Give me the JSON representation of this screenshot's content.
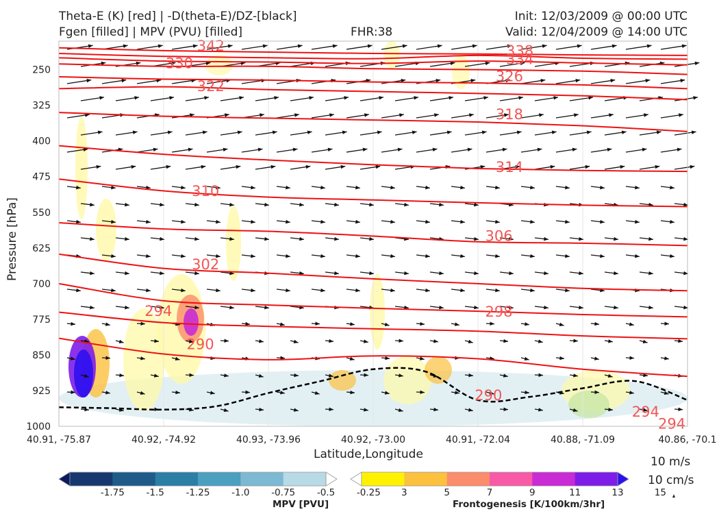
{
  "header": {
    "left_line1": "Theta-E (K) [red] | -D(theta-E)/DZ-[black]",
    "left_line2": "Fgen [filled] | MPV (PVU) [filled]",
    "center": "FHR:38",
    "right_line1": "Init: 12/03/2009 @ 00:00 UTC",
    "right_line2": "Valid: 12/04/2009 @ 14:00 UTC"
  },
  "chart_data": {
    "type": "cross-section",
    "xlabel": "Latitude,Longitude",
    "ylabel": "Pressure [hPa]",
    "x_ticks": [
      "40.91, -75.87",
      "40.92, -74.92",
      "40.93, -73.96",
      "40.92, -73.00",
      "40.91, -72.04",
      "40.88, -71.09",
      "40.86, -70.1"
    ],
    "y_ticks": [
      250,
      325,
      400,
      475,
      550,
      625,
      700,
      775,
      850,
      925,
      1000
    ],
    "ylim": [
      1000,
      190
    ],
    "theta_e_contours": [
      {
        "label": "342",
        "values": [
          [
            0,
            204
          ],
          [
            1,
            210
          ],
          [
            2,
            213
          ],
          [
            3,
            216
          ],
          [
            4,
            217
          ],
          [
            5,
            219
          ],
          [
            6,
            220
          ]
        ]
      },
      {
        "label": "338",
        "values": [
          [
            0,
            216
          ],
          [
            1,
            222
          ],
          [
            2,
            225
          ],
          [
            3,
            227
          ],
          [
            4,
            220
          ],
          [
            5,
            226
          ],
          [
            6,
            228
          ]
        ]
      },
      {
        "label": "334",
        "values": [
          [
            0,
            225
          ],
          [
            1,
            232
          ],
          [
            2,
            234
          ],
          [
            3,
            237
          ],
          [
            4,
            232
          ],
          [
            5,
            236
          ],
          [
            6,
            240
          ]
        ]
      },
      {
        "label": "330",
        "values": [
          [
            0,
            238
          ],
          [
            1,
            243
          ],
          [
            2,
            243
          ],
          [
            3,
            248
          ],
          [
            4,
            250
          ],
          [
            5,
            253
          ],
          [
            6,
            260
          ]
        ]
      },
      {
        "label": "326",
        "values": [
          [
            0,
            265
          ],
          [
            1,
            270
          ],
          [
            2,
            272
          ],
          [
            3,
            276
          ],
          [
            4,
            278
          ],
          [
            5,
            282
          ],
          [
            6,
            290
          ]
        ]
      },
      {
        "label": "322",
        "values": [
          [
            0,
            290
          ],
          [
            1,
            286
          ],
          [
            2,
            292
          ],
          [
            3,
            296
          ],
          [
            4,
            300
          ],
          [
            5,
            305
          ],
          [
            6,
            313
          ]
        ]
      },
      {
        "label": "318",
        "values": [
          [
            0,
            340
          ],
          [
            1,
            348
          ],
          [
            2,
            352
          ],
          [
            3,
            356
          ],
          [
            4,
            360
          ],
          [
            5,
            368
          ],
          [
            6,
            380
          ]
        ]
      },
      {
        "label": "314",
        "values": [
          [
            0,
            410
          ],
          [
            1,
            428
          ],
          [
            2,
            440
          ],
          [
            3,
            450
          ],
          [
            4,
            458
          ],
          [
            5,
            462
          ],
          [
            6,
            464
          ]
        ]
      },
      {
        "label": "310",
        "values": [
          [
            0,
            480
          ],
          [
            1,
            505
          ],
          [
            2,
            518
          ],
          [
            3,
            524
          ],
          [
            4,
            530
          ],
          [
            5,
            535
          ],
          [
            6,
            538
          ]
        ]
      },
      {
        "label": "306",
        "values": [
          [
            0,
            572
          ],
          [
            1,
            585
          ],
          [
            2,
            590
          ],
          [
            3,
            600
          ],
          [
            4,
            612
          ],
          [
            5,
            615
          ],
          [
            6,
            620
          ]
        ]
      },
      {
        "label": "302",
        "values": [
          [
            0,
            638
          ],
          [
            1,
            668
          ],
          [
            2,
            678
          ],
          [
            3,
            690
          ],
          [
            4,
            700
          ],
          [
            5,
            710
          ],
          [
            6,
            715
          ]
        ]
      },
      {
        "label": "298",
        "values": [
          [
            0,
            700
          ],
          [
            1,
            736
          ],
          [
            2,
            745
          ],
          [
            3,
            752
          ],
          [
            4,
            758
          ],
          [
            5,
            765
          ],
          [
            6,
            770
          ]
        ]
      },
      {
        "label": "294",
        "values": [
          [
            0,
            760
          ],
          [
            1,
            782
          ],
          [
            2,
            790
          ],
          [
            3,
            795
          ],
          [
            4,
            800
          ],
          [
            5,
            810
          ],
          [
            6,
            816
          ]
        ]
      },
      {
        "label": "290",
        "values": [
          [
            0,
            815
          ],
          [
            1,
            848
          ],
          [
            2,
            860
          ],
          [
            3,
            852
          ],
          [
            4,
            858
          ],
          [
            5,
            880
          ],
          [
            6,
            895
          ]
        ]
      }
    ],
    "theta_e_labels": [
      {
        "text": "342",
        "x": 1.45,
        "y": 200
      },
      {
        "text": "338",
        "x": 4.4,
        "y": 211
      },
      {
        "text": "334",
        "x": 4.4,
        "y": 228
      },
      {
        "text": "330",
        "x": 1.15,
        "y": 237
      },
      {
        "text": "326",
        "x": 4.3,
        "y": 264
      },
      {
        "text": "322",
        "x": 1.45,
        "y": 285
      },
      {
        "text": "318",
        "x": 4.3,
        "y": 344
      },
      {
        "text": "314",
        "x": 4.3,
        "y": 455
      },
      {
        "text": "310",
        "x": 1.4,
        "y": 506
      },
      {
        "text": "306",
        "x": 4.2,
        "y": 600
      },
      {
        "text": "302",
        "x": 1.4,
        "y": 660
      },
      {
        "text": "298",
        "x": 4.2,
        "y": 759
      },
      {
        "text": "294",
        "x": 0.95,
        "y": 758
      },
      {
        "text": "290",
        "x": 1.35,
        "y": 828
      },
      {
        "text": "290",
        "x": 4.1,
        "y": 935
      },
      {
        "text": "294",
        "x": 5.6,
        "y": 970
      },
      {
        "text": "294",
        "x": 5.85,
        "y": 995
      }
    ],
    "stability_contour_black_dashed": [
      [
        0,
        960
      ],
      [
        0.5,
        962
      ],
      [
        1,
        965
      ],
      [
        1.5,
        958
      ],
      [
        2,
        930
      ],
      [
        2.5,
        905
      ],
      [
        3,
        880
      ],
      [
        3.5,
        885
      ],
      [
        4,
        945
      ],
      [
        4.5,
        938
      ],
      [
        5,
        920
      ],
      [
        5.5,
        905
      ],
      [
        6,
        945
      ]
    ],
    "mpv_colorbar": {
      "label": "MPV [PVU]",
      "ticks": [
        "-1.75",
        "-1.5",
        "-1.25",
        "-1.0",
        "-0.75",
        "-0.5",
        "-0.25"
      ],
      "colors": [
        "#0b1a5e",
        "#17386e",
        "#1e5b8a",
        "#2b7ea6",
        "#4b9fc0",
        "#7db9d2",
        "#b8d9e6",
        "#ffffff"
      ]
    },
    "fgen_colorbar": {
      "label": "Frontogenesis [K/100km/3hr]",
      "ticks": [
        "3",
        "5",
        "7",
        "9",
        "11",
        "13",
        "15"
      ],
      "colors": [
        "#ffffff",
        "#fff200",
        "#fcc13f",
        "#fb8c6c",
        "#f85aa8",
        "#c92bd4",
        "#7e1de8",
        "#2c10f0"
      ]
    },
    "vector_key": {
      "label1": "10 m/s",
      "label2": "10 cm/s"
    }
  }
}
